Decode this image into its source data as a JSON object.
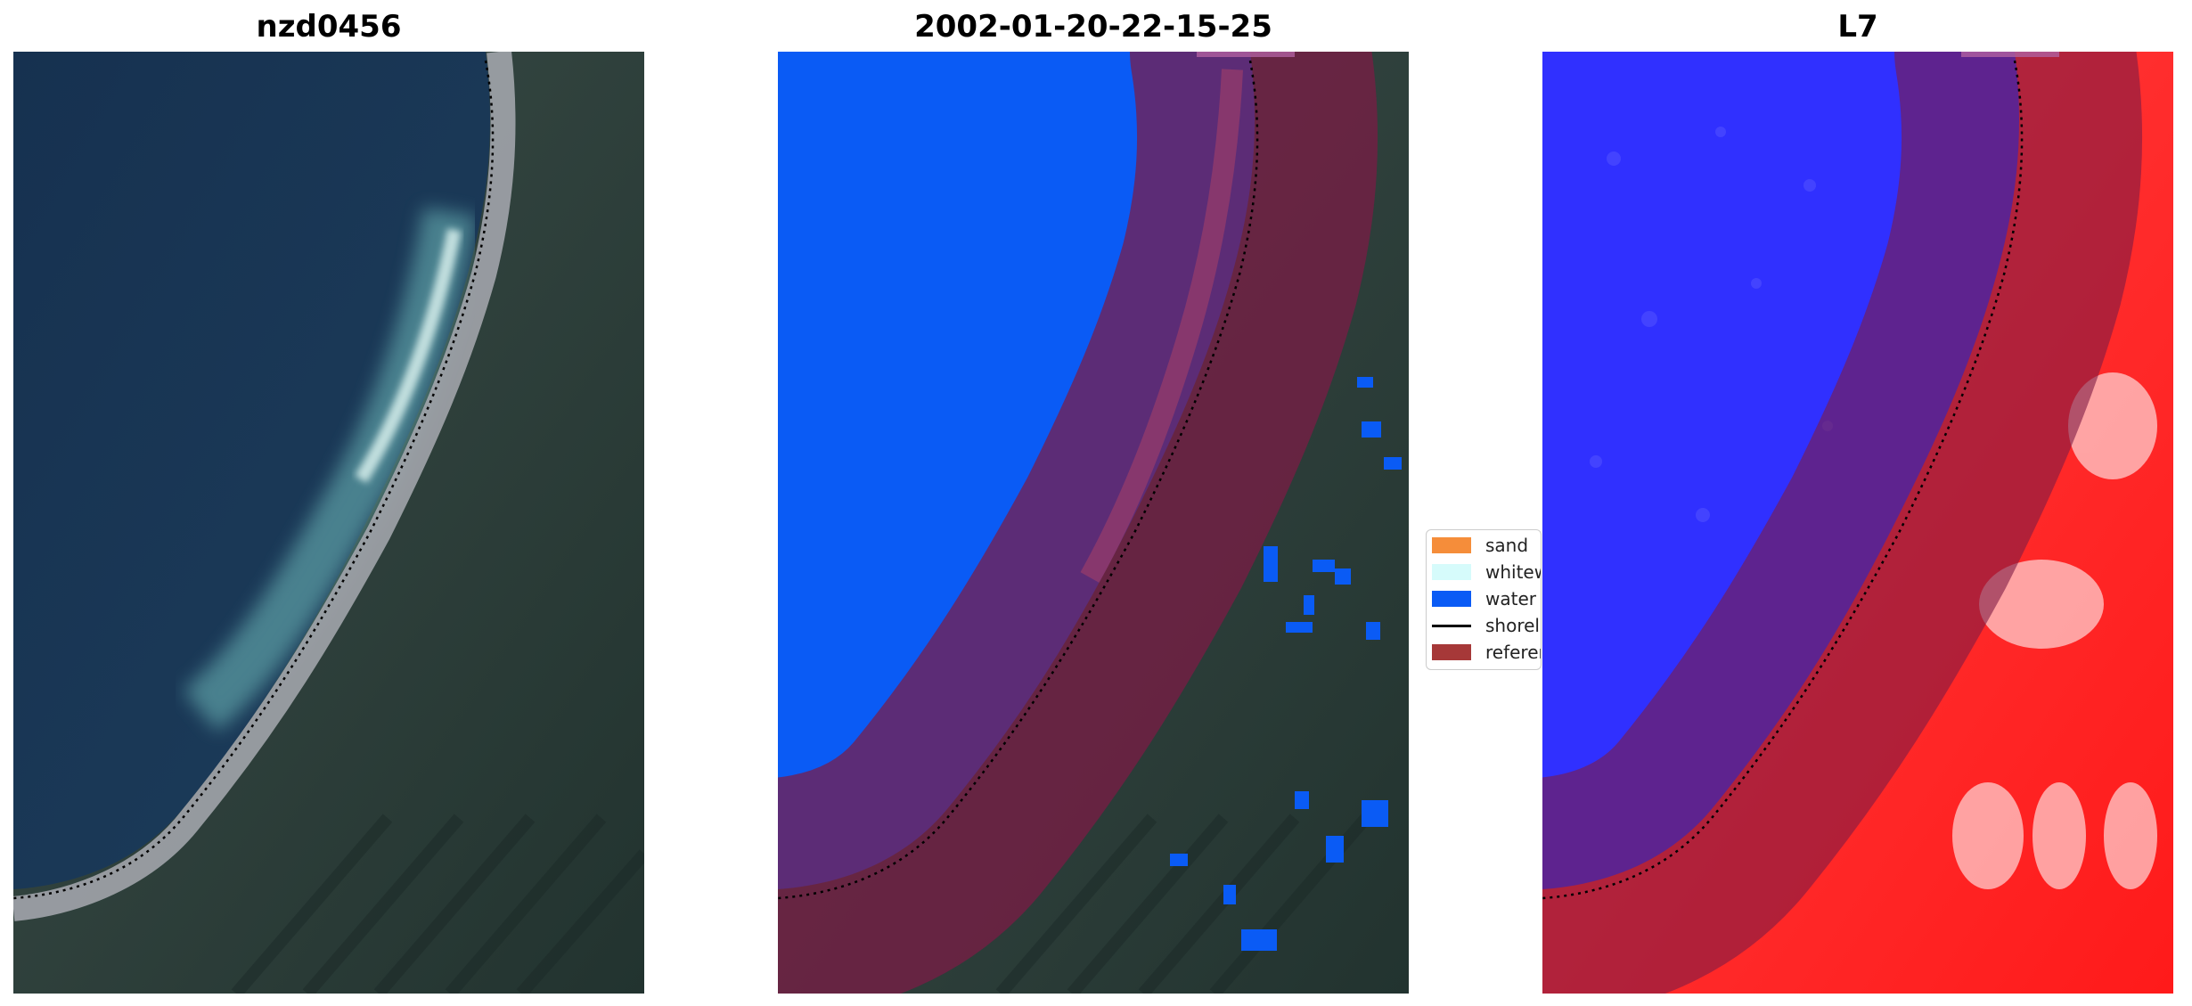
{
  "panels": [
    {
      "title": "nzd0456"
    },
    {
      "title": "2002-01-20-22-15-25"
    },
    {
      "title": "L7"
    }
  ],
  "legend": {
    "items": [
      {
        "label": "sand",
        "color": "#f58d3a",
        "kind": "patch"
      },
      {
        "label": "whitewater",
        "color": "#d6fbfb",
        "kind": "patch"
      },
      {
        "label": "water",
        "color": "#0a5bf5",
        "kind": "patch"
      },
      {
        "label": "shoreline",
        "color": "#000000",
        "kind": "line"
      },
      {
        "label": "reference shoreline buffer",
        "color": "#a63838",
        "kind": "patch"
      }
    ]
  },
  "colors": {
    "deep_water": "#1a3552",
    "land_dark": "#2a3d3a",
    "classified_water": "#0a5bf5",
    "buffer_overlay": "#7d1a45",
    "mndwi_negative": "#ff2a2a",
    "mndwi_positive": "#2a2aff"
  }
}
